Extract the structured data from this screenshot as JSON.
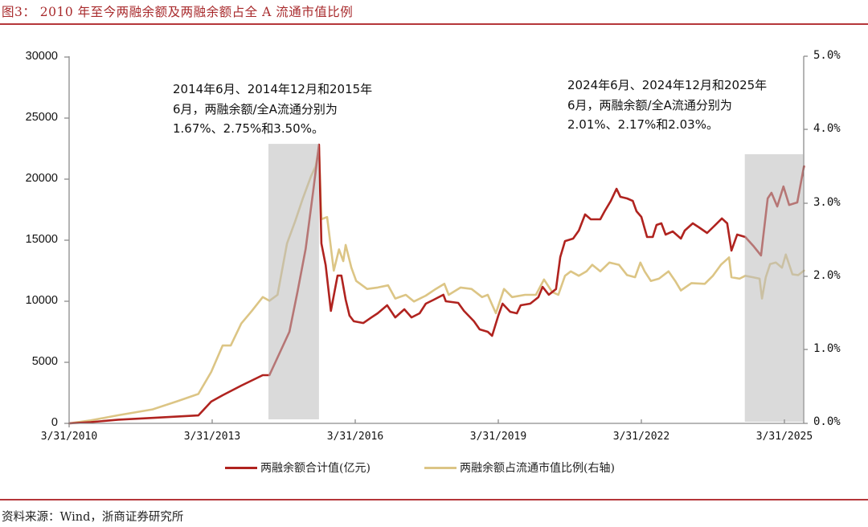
{
  "figure": {
    "title": "图3： 2010 年至今两融余额及两融余额占全 A 流通市值比例",
    "source": "资料来源：Wind，浙商证券研究所"
  },
  "chart_data": {
    "type": "line",
    "title": "2010 年至今两融余额及两融余额占全 A 流通市值比例",
    "xlabel": "",
    "ylabel": "两融余额合计值(亿元)",
    "ylabel_right": "两融余额占流通市值比例(右轴)",
    "x_unit": "decimal year",
    "xlim": [
      2010.25,
      2025.66
    ],
    "ylim": [
      0,
      30000
    ],
    "ylim_right": [
      0,
      5.0
    ],
    "grid": false,
    "legend_position": "bottom",
    "x_ticks": [
      "3/31/2010",
      "3/31/2013",
      "3/31/2016",
      "3/31/2019",
      "3/31/2022",
      "3/31/2025"
    ],
    "y_ticks_left": [
      "30000",
      "25000",
      "20000",
      "15000",
      "10000",
      "5000",
      "0"
    ],
    "y_ticks_right": [
      "5.0%",
      "4.0%",
      "3.0%",
      "2.0%",
      "1.0%",
      "0.0%"
    ],
    "series": [
      {
        "name": "两融余额合计值(亿元)",
        "axis": "left",
        "unit": "亿元",
        "color": "#b0231f",
        "points": [
          [
            2010.25,
            0
          ],
          [
            2010.7,
            100
          ],
          [
            2011.28,
            300
          ],
          [
            2012.0,
            450
          ],
          [
            2012.96,
            650
          ],
          [
            2013.23,
            1780
          ],
          [
            2013.47,
            2300
          ],
          [
            2013.86,
            3090
          ],
          [
            2014.31,
            3950
          ],
          [
            2014.45,
            3950
          ],
          [
            2014.87,
            7500
          ],
          [
            2015.04,
            10790
          ],
          [
            2015.21,
            14280
          ],
          [
            2015.37,
            19080
          ],
          [
            2015.49,
            22830
          ],
          [
            2015.54,
            14740
          ],
          [
            2015.63,
            12960
          ],
          [
            2015.74,
            9210
          ],
          [
            2015.88,
            12100
          ],
          [
            2015.96,
            12100
          ],
          [
            2016.05,
            10130
          ],
          [
            2016.13,
            8820
          ],
          [
            2016.22,
            8360
          ],
          [
            2016.42,
            8220
          ],
          [
            2016.59,
            8680
          ],
          [
            2016.72,
            9010
          ],
          [
            2016.92,
            9670
          ],
          [
            2017.09,
            8680
          ],
          [
            2017.28,
            9340
          ],
          [
            2017.43,
            8680
          ],
          [
            2017.6,
            9010
          ],
          [
            2017.73,
            9800
          ],
          [
            2017.9,
            10130
          ],
          [
            2018.1,
            10530
          ],
          [
            2018.15,
            10000
          ],
          [
            2018.41,
            9870
          ],
          [
            2018.53,
            9210
          ],
          [
            2018.74,
            8360
          ],
          [
            2018.86,
            7700
          ],
          [
            2019.03,
            7500
          ],
          [
            2019.12,
            7170
          ],
          [
            2019.25,
            8820
          ],
          [
            2019.34,
            9800
          ],
          [
            2019.5,
            9140
          ],
          [
            2019.64,
            9010
          ],
          [
            2019.72,
            9670
          ],
          [
            2019.92,
            9800
          ],
          [
            2020.09,
            10330
          ],
          [
            2020.18,
            11180
          ],
          [
            2020.31,
            10530
          ],
          [
            2020.46,
            11000
          ],
          [
            2020.55,
            13620
          ],
          [
            2020.65,
            14930
          ],
          [
            2020.82,
            15130
          ],
          [
            2020.94,
            15790
          ],
          [
            2021.07,
            17110
          ],
          [
            2021.19,
            16710
          ],
          [
            2021.39,
            16710
          ],
          [
            2021.48,
            17370
          ],
          [
            2021.61,
            18220
          ],
          [
            2021.73,
            19210
          ],
          [
            2021.81,
            18550
          ],
          [
            2021.95,
            18420
          ],
          [
            2022.07,
            18220
          ],
          [
            2022.15,
            17370
          ],
          [
            2022.25,
            16910
          ],
          [
            2022.37,
            15260
          ],
          [
            2022.49,
            15260
          ],
          [
            2022.57,
            16250
          ],
          [
            2022.67,
            16380
          ],
          [
            2022.76,
            15460
          ],
          [
            2022.91,
            15720
          ],
          [
            2023.08,
            15130
          ],
          [
            2023.16,
            15790
          ],
          [
            2023.33,
            16380
          ],
          [
            2023.46,
            16050
          ],
          [
            2023.63,
            15590
          ],
          [
            2023.75,
            16050
          ],
          [
            2023.94,
            16780
          ],
          [
            2024.05,
            16380
          ],
          [
            2024.14,
            14150
          ],
          [
            2024.26,
            15460
          ],
          [
            2024.43,
            15260
          ],
          [
            2024.61,
            14480
          ],
          [
            2024.76,
            13750
          ],
          [
            2024.9,
            18420
          ],
          [
            2024.98,
            18880
          ],
          [
            2025.1,
            17760
          ],
          [
            2025.23,
            19400
          ],
          [
            2025.35,
            17890
          ],
          [
            2025.52,
            18090
          ],
          [
            2025.62,
            20200
          ],
          [
            2025.66,
            21050
          ]
        ]
      },
      {
        "name": "两融余额占流通市值比例(右轴)",
        "axis": "right",
        "unit": "%",
        "color": "#dcc585",
        "points": [
          [
            2010.25,
            0.0
          ],
          [
            2010.7,
            0.04
          ],
          [
            2011.28,
            0.11
          ],
          [
            2012.0,
            0.19
          ],
          [
            2012.51,
            0.3
          ],
          [
            2012.96,
            0.4
          ],
          [
            2013.23,
            0.7
          ],
          [
            2013.47,
            1.06
          ],
          [
            2013.64,
            1.06
          ],
          [
            2013.86,
            1.36
          ],
          [
            2014.08,
            1.53
          ],
          [
            2014.31,
            1.72
          ],
          [
            2014.45,
            1.67
          ],
          [
            2014.62,
            1.75
          ],
          [
            2014.82,
            2.45
          ],
          [
            2014.99,
            2.75
          ],
          [
            2015.15,
            3.06
          ],
          [
            2015.32,
            3.36
          ],
          [
            2015.42,
            3.5
          ],
          [
            2015.49,
            3.76
          ],
          [
            2015.54,
            2.78
          ],
          [
            2015.66,
            2.81
          ],
          [
            2015.8,
            2.08
          ],
          [
            2015.91,
            2.37
          ],
          [
            2016.0,
            2.21
          ],
          [
            2016.05,
            2.43
          ],
          [
            2016.17,
            2.12
          ],
          [
            2016.27,
            1.94
          ],
          [
            2016.5,
            1.83
          ],
          [
            2016.72,
            1.85
          ],
          [
            2016.94,
            1.88
          ],
          [
            2017.09,
            1.7
          ],
          [
            2017.31,
            1.75
          ],
          [
            2017.48,
            1.66
          ],
          [
            2017.73,
            1.74
          ],
          [
            2017.94,
            1.83
          ],
          [
            2018.12,
            1.9
          ],
          [
            2018.21,
            1.75
          ],
          [
            2018.46,
            1.85
          ],
          [
            2018.69,
            1.83
          ],
          [
            2018.91,
            1.72
          ],
          [
            2019.03,
            1.75
          ],
          [
            2019.2,
            1.5
          ],
          [
            2019.37,
            1.83
          ],
          [
            2019.54,
            1.72
          ],
          [
            2019.81,
            1.75
          ],
          [
            2020.04,
            1.75
          ],
          [
            2020.21,
            1.96
          ],
          [
            2020.38,
            1.79
          ],
          [
            2020.51,
            1.75
          ],
          [
            2020.65,
            2.01
          ],
          [
            2020.77,
            2.07
          ],
          [
            2020.94,
            2.01
          ],
          [
            2021.1,
            2.07
          ],
          [
            2021.22,
            2.16
          ],
          [
            2021.39,
            2.07
          ],
          [
            2021.58,
            2.19
          ],
          [
            2021.78,
            2.16
          ],
          [
            2021.95,
            2.02
          ],
          [
            2022.12,
            1.99
          ],
          [
            2022.23,
            2.19
          ],
          [
            2022.32,
            2.07
          ],
          [
            2022.45,
            1.94
          ],
          [
            2022.62,
            1.97
          ],
          [
            2022.82,
            2.07
          ],
          [
            2022.96,
            1.94
          ],
          [
            2023.08,
            1.81
          ],
          [
            2023.3,
            1.91
          ],
          [
            2023.58,
            1.9
          ],
          [
            2023.75,
            2.01
          ],
          [
            2023.92,
            2.16
          ],
          [
            2024.09,
            2.26
          ],
          [
            2024.14,
            1.99
          ],
          [
            2024.31,
            1.97
          ],
          [
            2024.43,
            2.01
          ],
          [
            2024.59,
            1.99
          ],
          [
            2024.73,
            1.97
          ],
          [
            2024.78,
            1.7
          ],
          [
            2024.86,
            1.99
          ],
          [
            2024.95,
            2.17
          ],
          [
            2025.07,
            2.19
          ],
          [
            2025.2,
            2.12
          ],
          [
            2025.28,
            2.3
          ],
          [
            2025.42,
            2.03
          ],
          [
            2025.54,
            2.02
          ],
          [
            2025.66,
            2.08
          ]
        ]
      }
    ],
    "shaded_periods": [
      {
        "start": 2014.43,
        "end": 2015.49,
        "bottom": 330,
        "top": 22890
      },
      {
        "start": 2024.42,
        "end": 2025.64,
        "bottom": 130,
        "top": 22040
      }
    ],
    "annotations": [
      {
        "lines": [
          "2014年6月、2014年12月和2015年",
          "6月，两融余额/全A流通分别为",
          "1.67%、2.75%和3.50%。"
        ]
      },
      {
        "lines": [
          "2024年6月、2024年12月和2025年",
          "6月，两融余额/全A流通分别为",
          "2.01%、2.17%和2.03%。"
        ]
      }
    ]
  }
}
